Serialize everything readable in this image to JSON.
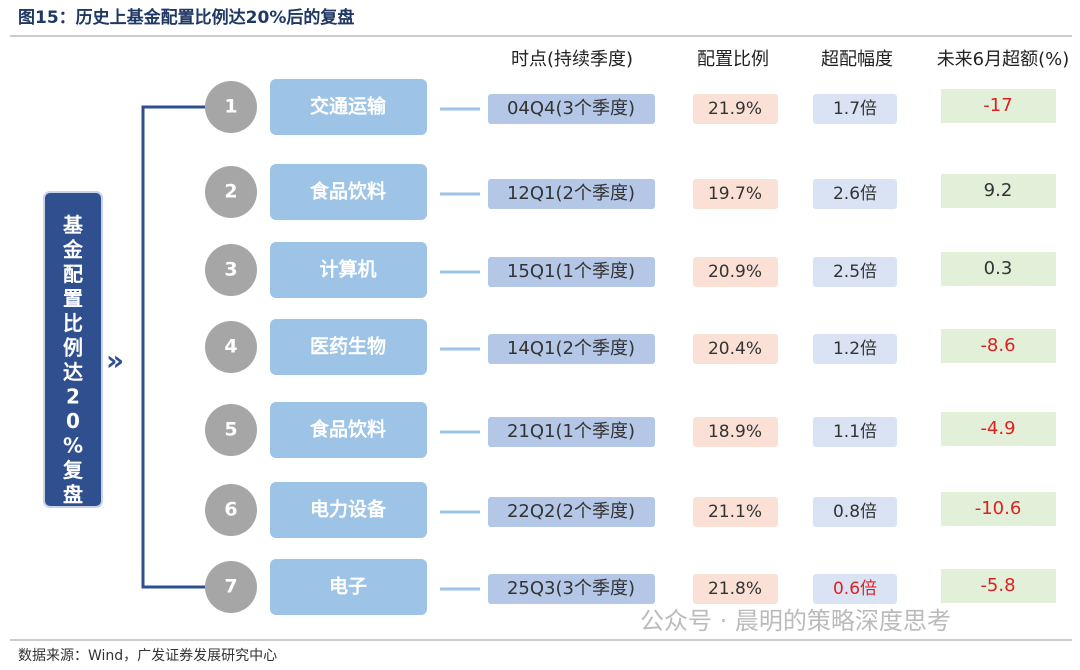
{
  "title": "图15：历史上基金配置比例达20%后的复盘",
  "side_label": "基金配置比例达20%复盘",
  "headers": [
    "时点(持续季度)",
    "配置比例",
    "超配幅度",
    "未来6月超额(%)"
  ],
  "rows": [
    {
      "no": "1",
      "sector": "交通运输",
      "time": "04Q4(3个季度)",
      "ratio": "21.9%",
      "over": "1.7倍",
      "excess": "-17",
      "excess_color": "#e02020"
    },
    {
      "no": "2",
      "sector": "食品饮料",
      "time": "12Q1(2个季度)",
      "ratio": "19.7%",
      "over": "2.6倍",
      "excess": "9.2",
      "excess_color": "#333333"
    },
    {
      "no": "3",
      "sector": "计算机",
      "time": "15Q1(1个季度)",
      "ratio": "20.9%",
      "over": "2.5倍",
      "excess": "0.3",
      "excess_color": "#333333"
    },
    {
      "no": "4",
      "sector": "医药生物",
      "time": "14Q1(2个季度)",
      "ratio": "20.4%",
      "over": "1.2倍",
      "excess": "-8.6",
      "excess_color": "#e02020"
    },
    {
      "no": "5",
      "sector": "食品饮料",
      "time": "21Q1(1个季度)",
      "ratio": "18.9%",
      "over": "1.1倍",
      "excess": "-4.9",
      "excess_color": "#e02020"
    },
    {
      "no": "6",
      "sector": "电力设备",
      "time": "22Q2(2个季度)",
      "ratio": "21.1%",
      "over": "0.8倍",
      "excess": "-10.6",
      "excess_color": "#e02020"
    },
    {
      "no": "7",
      "sector": "电子",
      "time": "25Q3(3个季度)",
      "ratio": "21.8%",
      "over": "0.6倍",
      "over_color": "#e02020",
      "excess": "-5.8",
      "excess_color": "#e02020"
    }
  ],
  "source": "数据来源：Wind，广发证券发展研究中心",
  "watermark": "公众号 · 晨明的策略深度思考"
}
